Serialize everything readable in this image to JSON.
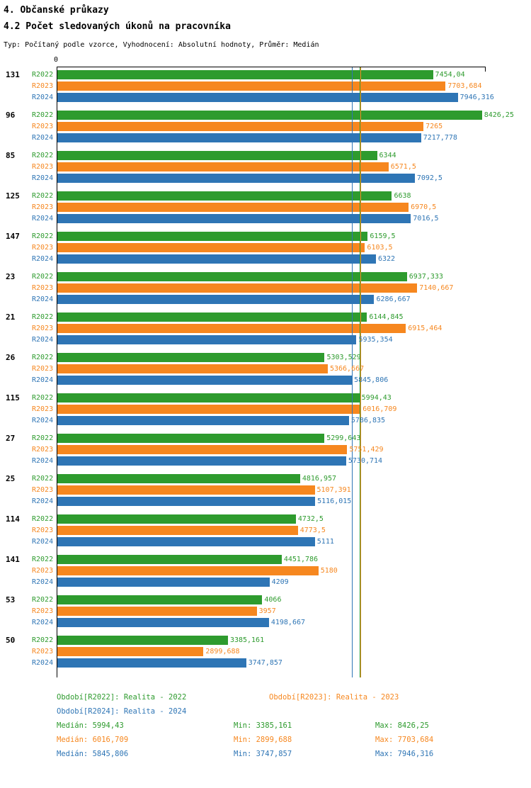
{
  "header": {
    "title": "4. Občanské průkazy",
    "subtitle": "4.2 Počet sledovaných úkonů na pracovníka",
    "meta": "Typ: Počítaný podle vzorce, Vyhodnocení: Absolutní hodnoty, Průměr: Medián"
  },
  "colors": {
    "r2022": "#2e9b2e",
    "r2023": "#f6871f",
    "r2024": "#2e75b5"
  },
  "chart_data": {
    "type": "bar",
    "orientation": "horizontal",
    "title": "4.2 Počet sledovaných úkonů na pracovníka",
    "axis_origin_label": "0",
    "xlabel": "",
    "ylabel": "",
    "xlim": [
      0,
      8500
    ],
    "grid": false,
    "legend_position": "bottom",
    "categories": [
      "131",
      "96",
      "85",
      "125",
      "147",
      "23",
      "21",
      "26",
      "115",
      "27",
      "25",
      "114",
      "141",
      "53",
      "50"
    ],
    "series": [
      {
        "name": "R2022",
        "color_key": "r2022",
        "values": [
          7454.04,
          8426.25,
          6344,
          6638,
          6159.5,
          6937.333,
          6144.845,
          5303.529,
          5994.43,
          5299.643,
          4816.957,
          4732.5,
          4451.786,
          4066,
          3385.161
        ],
        "labels": [
          "7454,04",
          "8426,25",
          "6344",
          "6638",
          "6159,5",
          "6937,333",
          "6144,845",
          "5303,529",
          "5994,43",
          "5299,643",
          "4816,957",
          "4732,5",
          "4451,786",
          "4066",
          "3385,161"
        ]
      },
      {
        "name": "R2023",
        "color_key": "r2023",
        "values": [
          7703.684,
          7265,
          6571.5,
          6970.5,
          6103.5,
          7140.667,
          6915.464,
          5366.667,
          6016.709,
          5751.429,
          5107.391,
          4773.5,
          5180,
          3957,
          2899.688
        ],
        "labels": [
          "7703,684",
          "7265",
          "6571,5",
          "6970,5",
          "6103,5",
          "7140,667",
          "6915,464",
          "5366,667",
          "6016,709",
          "5751,429",
          "5107,391",
          "4773,5",
          "5180",
          "3957",
          "2899,688"
        ]
      },
      {
        "name": "R2024",
        "color_key": "r2024",
        "values": [
          7946.316,
          7217.778,
          7092.5,
          7016.5,
          6322,
          6286.667,
          5935.354,
          5845.806,
          5786.835,
          5730.714,
          5116.015,
          5111,
          4209,
          4198.667,
          3747.857
        ],
        "labels": [
          "7946,316",
          "7217,778",
          "7092,5",
          "7016,5",
          "6322",
          "6286,667",
          "5935,354",
          "5845,806",
          "5786,835",
          "5730,714",
          "5116,015",
          "5111",
          "4209",
          "4198,667",
          "3747,857"
        ]
      }
    ],
    "median_lines": [
      {
        "color_key": "r2022",
        "value": 5994.43
      },
      {
        "color_key": "r2023",
        "value": 6016.709
      },
      {
        "color_key": "r2024",
        "value": 5845.806
      }
    ]
  },
  "legend": {
    "entries": [
      {
        "label": "Období[R2022]: Realita - 2022"
      },
      {
        "label": "Období[R2023]: Realita - 2023"
      },
      {
        "label": "Období[R2024]: Realita - 2024"
      }
    ],
    "stats": [
      {
        "median": "Medián: 5994,43",
        "min": "Min: 3385,161",
        "max": "Max: 8426,25"
      },
      {
        "median": "Medián: 6016,709",
        "min": "Min: 2899,688",
        "max": "Max: 7703,684"
      },
      {
        "median": "Medián: 5845,806",
        "min": "Min: 3747,857",
        "max": "Max: 7946,316"
      }
    ]
  }
}
